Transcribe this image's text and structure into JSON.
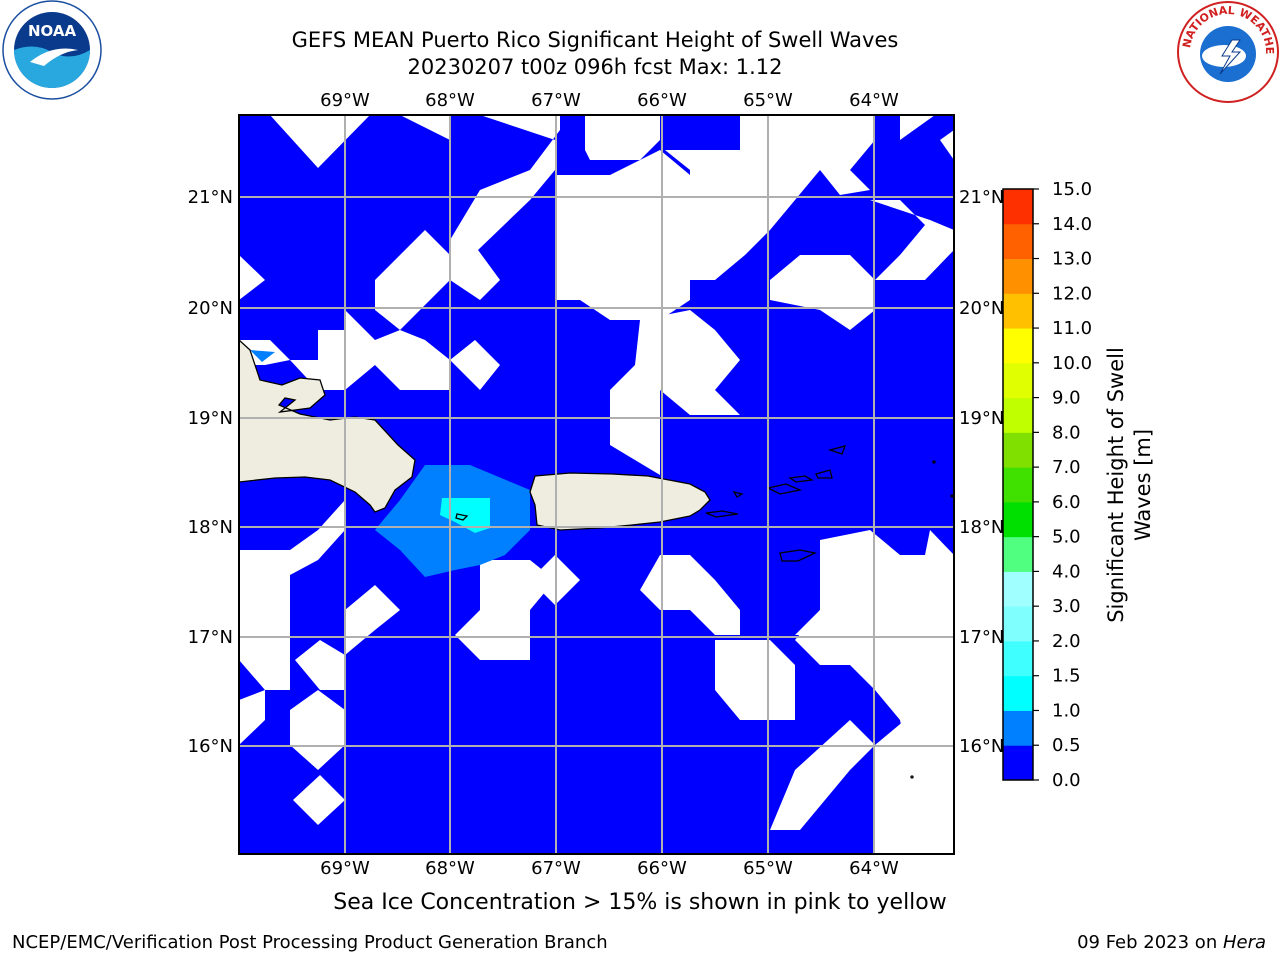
{
  "header": {
    "title_line1": "GEFS MEAN Puerto Rico Significant Height of Swell Waves",
    "title_line2": "20230207 t00z 096h fcst   Max: 1.12"
  },
  "logos": {
    "left": {
      "icon": "noaa-logo-icon",
      "text": "NOAA"
    },
    "right": {
      "icon": "nws-logo-icon",
      "text": "NATIONAL WEATHER SERVICE"
    }
  },
  "map": {
    "lon_labels": [
      "69°W",
      "68°W",
      "67°W",
      "66°W",
      "65°W",
      "64°W"
    ],
    "lat_labels": [
      "21°N",
      "20°N",
      "19°N",
      "18°N",
      "17°N",
      "16°N"
    ],
    "land_color": "#efeddf",
    "ocean_color": "#0000ff",
    "grid_color": "#b0b0b0"
  },
  "colorbar": {
    "label": "Significant Height of Swell Waves [m]",
    "label_line1": "Significant Height of Swell",
    "label_line2": "Waves [m]",
    "ticks": [
      "0.0",
      "0.5",
      "1.0",
      "1.5",
      "2.0",
      "3.0",
      "4.0",
      "5.0",
      "6.0",
      "7.0",
      "8.0",
      "9.0",
      "10.0",
      "11.0",
      "12.0",
      "13.0",
      "14.0",
      "15.0"
    ],
    "colors": [
      "#0000ff",
      "#0080ff",
      "#00ffff",
      "#40ffff",
      "#80ffff",
      "#a0ffff",
      "#50ff80",
      "#00e000",
      "#40e000",
      "#80e000",
      "#c0ff00",
      "#e0ff00",
      "#ffff00",
      "#ffc000",
      "#ff9000",
      "#ff6000",
      "#ff3000"
    ]
  },
  "caption": "Sea Ice Concentration > 15% is shown in pink to yellow",
  "footer": {
    "left": "NCEP/EMC/Verification Post Processing Product Generation Branch",
    "right_date": "09 Feb 2023 on ",
    "right_host": "Hera"
  }
}
